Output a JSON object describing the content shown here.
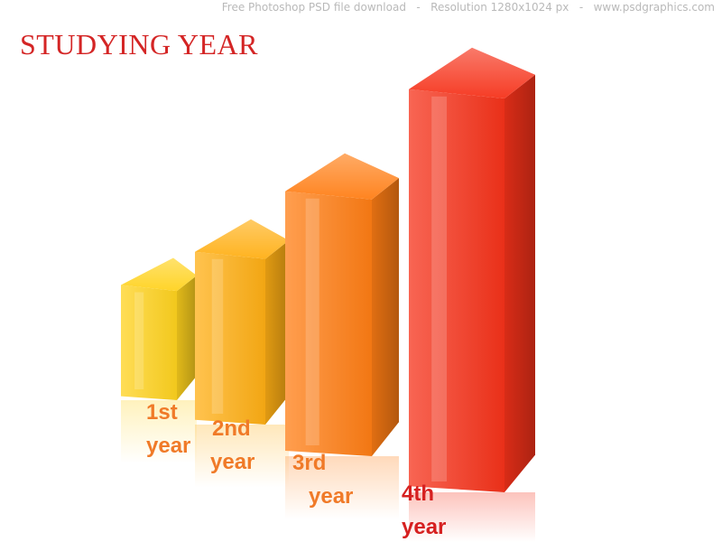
{
  "watermark": "Free Photoshop PSD file download   -   Resolution 1280x1024 px   -   www.psdgraphics.com",
  "title": "STUDYING YEAR",
  "colors": {
    "title": "#d42525",
    "label": "#f07a28",
    "label_last": "#d62020",
    "watermark": "#b9b9b9"
  },
  "chart_data": {
    "type": "bar",
    "title": "STUDYING YEAR",
    "categories": [
      "1st year",
      "2nd year",
      "3rd year",
      "4th year"
    ],
    "label_lines": [
      [
        "1st",
        "year"
      ],
      [
        "2nd",
        "year"
      ],
      [
        "3rd",
        "year"
      ],
      [
        "4th",
        "year"
      ]
    ],
    "values": [
      1,
      1.5,
      2.3,
      3.5
    ],
    "value_note": "relative heights only; no axis or scale printed",
    "bar_colors": [
      "#ffd21e",
      "#ffaf14",
      "#ff7d14",
      "#f5321a"
    ],
    "style": "3d-perspective-bars-with-reflection",
    "grid": false,
    "legend": "none"
  }
}
